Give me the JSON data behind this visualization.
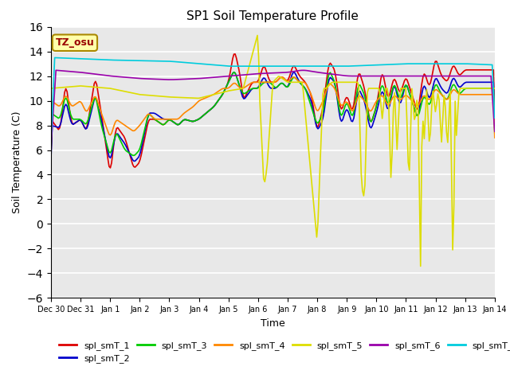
{
  "title": "SP1 Soil Temperature Profile",
  "xlabel": "Time",
  "ylabel": "Soil Temperature (C)",
  "ylim": [
    -6,
    16
  ],
  "yticks": [
    -6,
    -4,
    -2,
    0,
    2,
    4,
    6,
    8,
    10,
    12,
    14,
    16
  ],
  "tz_label": "TZ_osu",
  "series_colors": {
    "spl_smT_1": "#dd0000",
    "spl_smT_2": "#0000cc",
    "spl_smT_3": "#00cc00",
    "spl_smT_4": "#ff8800",
    "spl_smT_5": "#dddd00",
    "spl_smT_6": "#9900aa",
    "spl_smT_7": "#00ccdd"
  },
  "background_color": "#ffffff",
  "plot_bg_color": "#e8e8e8",
  "tick_labels": [
    "Dec 30",
    "Dec 31",
    "Jan 1",
    "Jan 2",
    "Jan 3",
    "Jan 4",
    "Jan 5",
    "Jan 6",
    "Jan 7",
    "Jan 8",
    "Jan 9",
    "Jan 10",
    "Jan 11",
    "Jan 12",
    "Jan 13",
    "Jan 14"
  ],
  "tick_positions": [
    0,
    1,
    2,
    3,
    4,
    5,
    6,
    7,
    8,
    9,
    10,
    11,
    12,
    13,
    14,
    15
  ]
}
